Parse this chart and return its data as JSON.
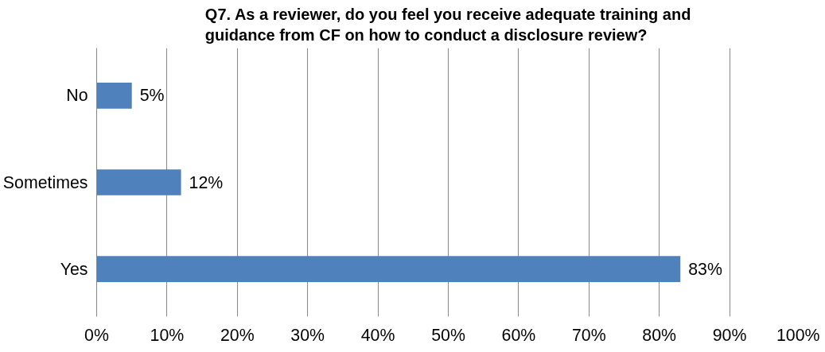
{
  "chart_data": {
    "type": "bar",
    "orientation": "horizontal",
    "title": "Q7. As a reviewer, do you feel you receive adequate training and guidance from CF on how to conduct a disclosure review?",
    "categories": [
      "No",
      "Sometimes",
      "Yes"
    ],
    "values": [
      5,
      12,
      83
    ],
    "value_labels": [
      "5%",
      "12%",
      "83%"
    ],
    "color": "#4f81bd",
    "xlim": [
      0,
      100
    ],
    "xticks": [
      {
        "value": 0,
        "label": "0%"
      },
      {
        "value": 10,
        "label": "10%"
      },
      {
        "value": 20,
        "label": "20%"
      },
      {
        "value": 30,
        "label": "30%"
      },
      {
        "value": 40,
        "label": "40%"
      },
      {
        "value": 50,
        "label": "50%"
      },
      {
        "value": 60,
        "label": "60%"
      },
      {
        "value": 70,
        "label": "70%"
      },
      {
        "value": 80,
        "label": "80%"
      },
      {
        "value": 90,
        "label": "90%"
      },
      {
        "value": 100,
        "label": "100%"
      }
    ],
    "grid": "x"
  }
}
